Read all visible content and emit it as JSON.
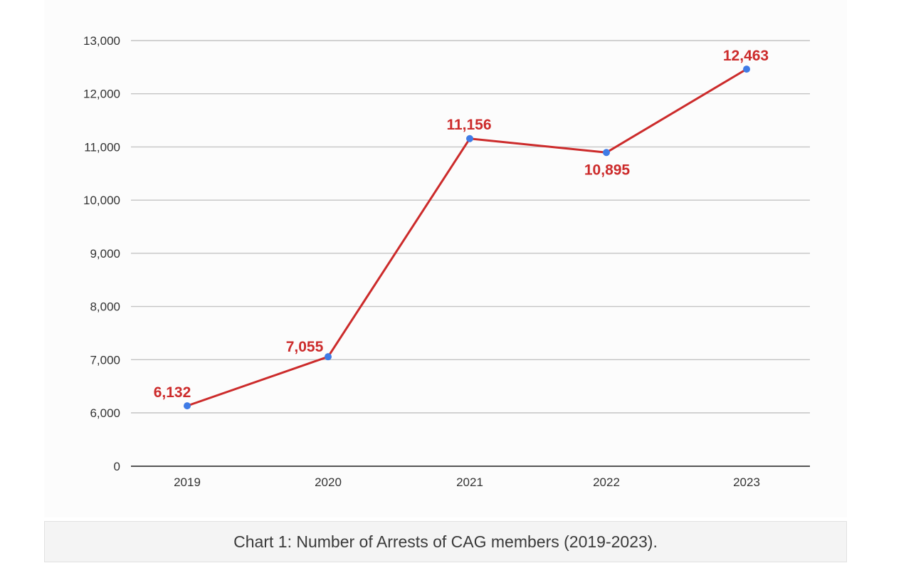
{
  "chart_data": {
    "type": "line",
    "title": "",
    "xlabel": "",
    "ylabel": "",
    "categories": [
      "2019",
      "2020",
      "2021",
      "2022",
      "2023"
    ],
    "series": [
      {
        "values": [
          6132,
          7055,
          11156,
          10895,
          12463
        ]
      }
    ],
    "data_labels": [
      "6,132",
      "7,055",
      "11,156",
      "10,895",
      "12,463"
    ],
    "y_ticks": [
      {
        "value": 0,
        "label": "0"
      },
      {
        "value": 6000,
        "label": "6,000"
      },
      {
        "value": 7000,
        "label": "7,000"
      },
      {
        "value": 8000,
        "label": "8,000"
      },
      {
        "value": 9000,
        "label": "9,000"
      },
      {
        "value": 10000,
        "label": "10,000"
      },
      {
        "value": 11000,
        "label": "11,000"
      },
      {
        "value": 12000,
        "label": "12,000"
      },
      {
        "value": 13000,
        "label": "13,000"
      }
    ],
    "ylim": [
      0,
      13000
    ],
    "y_axis_break": [
      0,
      6000
    ],
    "grid": true,
    "legend": "none",
    "colors": {
      "line": "#cc2b2b",
      "marker": "#3f7be6",
      "label": "#cc2b2b",
      "grid": "#c4c4c4",
      "baseline": "#555555"
    }
  },
  "caption": "Chart 1: Number of Arrests of CAG members (2019-2023)."
}
